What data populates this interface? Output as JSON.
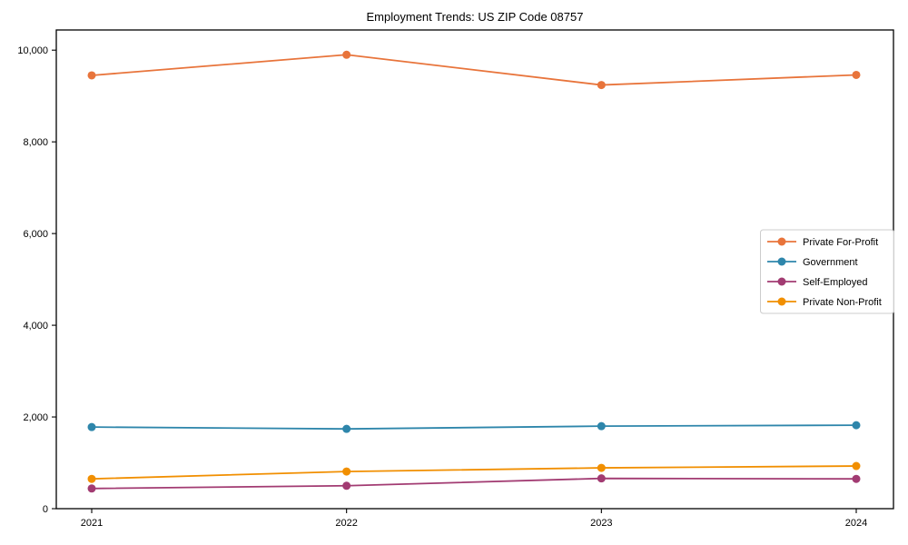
{
  "chart_data": {
    "type": "line",
    "title": "Employment Trends: US ZIP Code 08757",
    "xlabel": "",
    "ylabel": "",
    "x": [
      2021,
      2022,
      2023,
      2024
    ],
    "x_tick_labels": [
      "2021",
      "2022",
      "2023",
      "2024"
    ],
    "y_ticks": [
      0,
      2000,
      4000,
      6000,
      8000,
      10000
    ],
    "y_tick_labels": [
      "0",
      "2,000",
      "4,000",
      "6,000",
      "8,000",
      "10,000"
    ],
    "ylim": [
      0,
      10440
    ],
    "grid": false,
    "legend_position": "center right",
    "series": [
      {
        "name": "Private For-Profit",
        "color": "#e8743b",
        "values": [
          9450,
          9900,
          9240,
          9460
        ]
      },
      {
        "name": "Government",
        "color": "#2e86ab",
        "values": [
          1780,
          1740,
          1800,
          1820
        ]
      },
      {
        "name": "Self-Employed",
        "color": "#a23b72",
        "values": [
          440,
          500,
          660,
          650
        ]
      },
      {
        "name": "Private Non-Profit",
        "color": "#f18f01",
        "values": [
          650,
          810,
          890,
          930
        ]
      }
    ]
  }
}
